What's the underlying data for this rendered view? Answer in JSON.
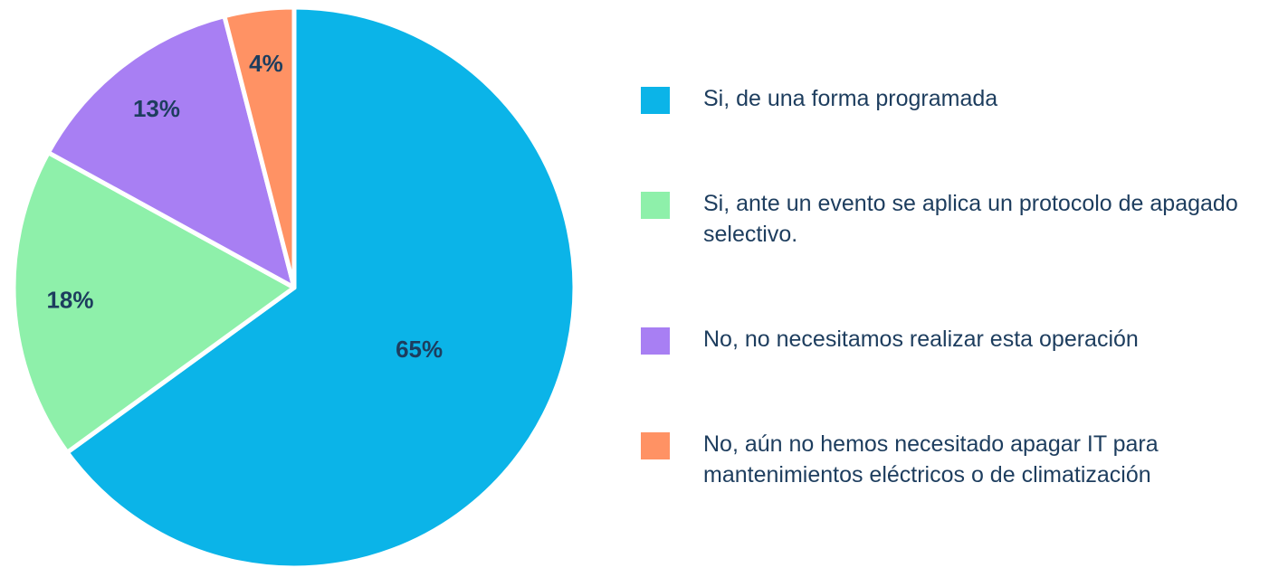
{
  "chart_data": {
    "type": "pie",
    "categories": [
      "Si, de una forma programada",
      "Si, ante un evento se aplica un protocolo de apagado selectivo.",
      "No, no necesitamos realizar esta operación",
      "No, aún no hemos necesitado apagar IT para mantenimientos eléctricos o de climatización"
    ],
    "values": [
      65,
      18,
      13,
      4
    ],
    "value_labels": [
      "65%",
      "18%",
      "13%",
      "4%"
    ],
    "colors": [
      "#0bb4e8",
      "#8ef0aa",
      "#a87ff3",
      "#ff9264"
    ],
    "legend": "right"
  }
}
